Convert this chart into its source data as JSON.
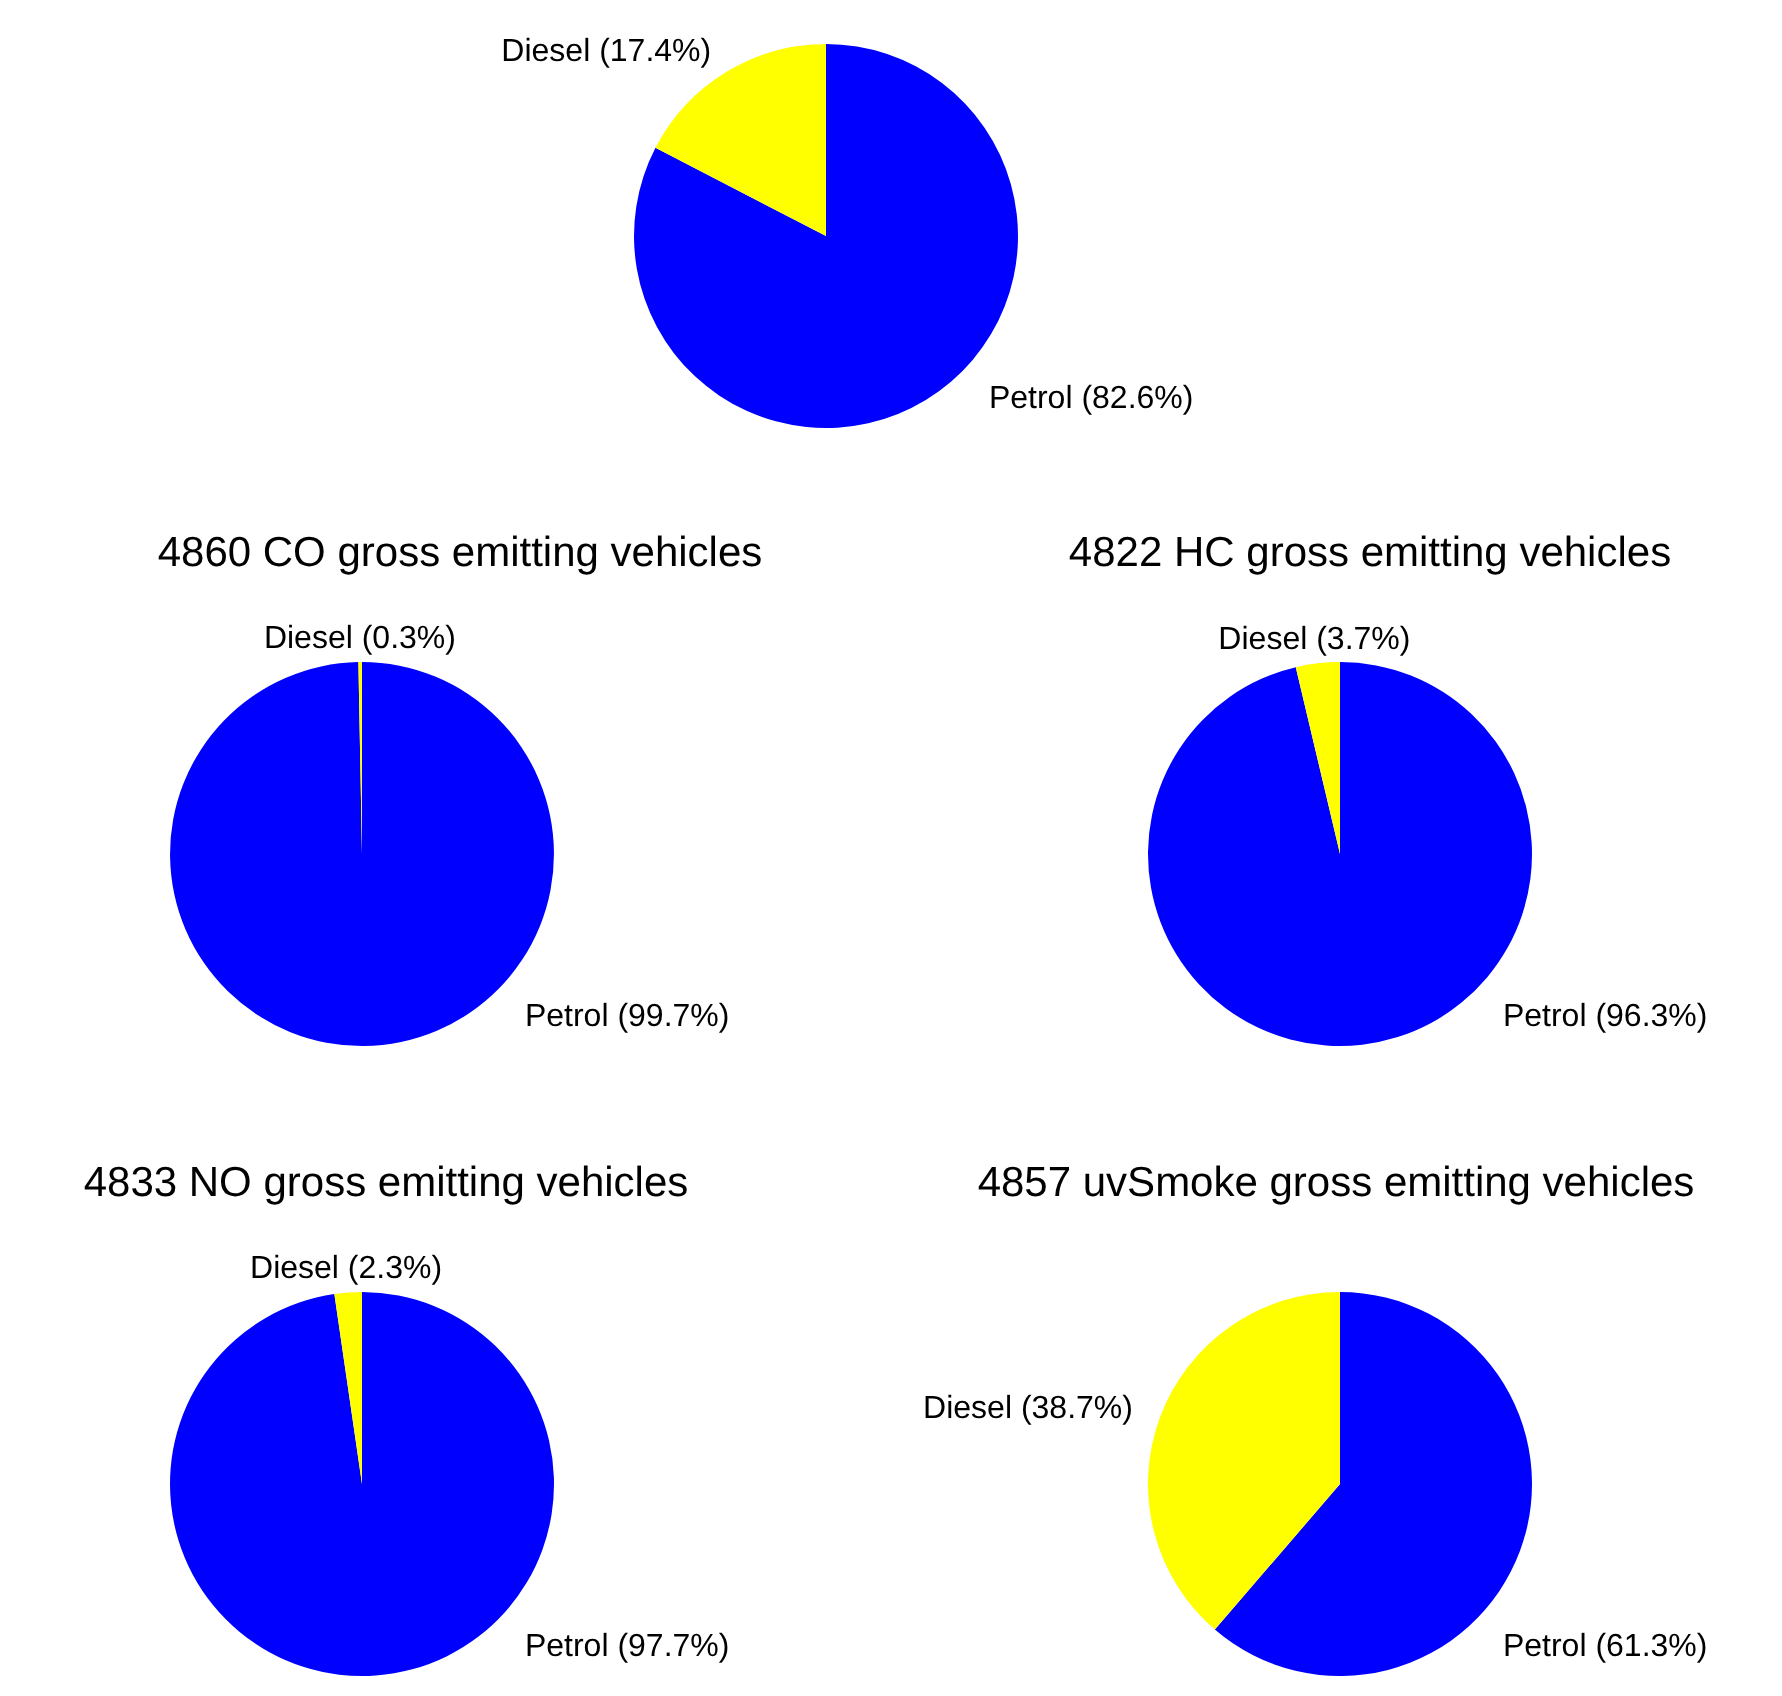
{
  "chart_data": [
    {
      "type": "pie",
      "categories": [
        "Petrol (82.6%)",
        "Diesel (17.4%)"
      ],
      "values": [
        82.6,
        17.4
      ],
      "colors": [
        "#0000ff",
        "#ffff00"
      ]
    },
    {
      "type": "pie",
      "title": "4860 CO gross emitting vehicles",
      "categories": [
        "Petrol (99.7%)",
        "Diesel (0.3%)"
      ],
      "values": [
        99.7,
        0.3
      ],
      "colors": [
        "#0000ff",
        "#ffff00"
      ]
    },
    {
      "type": "pie",
      "title": "4822 HC gross emitting vehicles",
      "categories": [
        "Petrol (96.3%)",
        "Diesel (3.7%)"
      ],
      "values": [
        96.3,
        3.7
      ],
      "colors": [
        "#0000ff",
        "#ffff00"
      ]
    },
    {
      "type": "pie",
      "title": "4833 NO gross emitting vehicles",
      "categories": [
        "Petrol (97.7%)",
        "Diesel (2.3%)"
      ],
      "values": [
        97.7,
        2.3
      ],
      "colors": [
        "#0000ff",
        "#ffff00"
      ]
    },
    {
      "type": "pie",
      "title": "4857 uvSmoke gross emitting vehicles",
      "categories": [
        "Petrol (61.3%)",
        "Diesel (38.7%)"
      ],
      "values": [
        61.3,
        38.7
      ],
      "colors": [
        "#0000ff",
        "#ffff00"
      ]
    }
  ]
}
